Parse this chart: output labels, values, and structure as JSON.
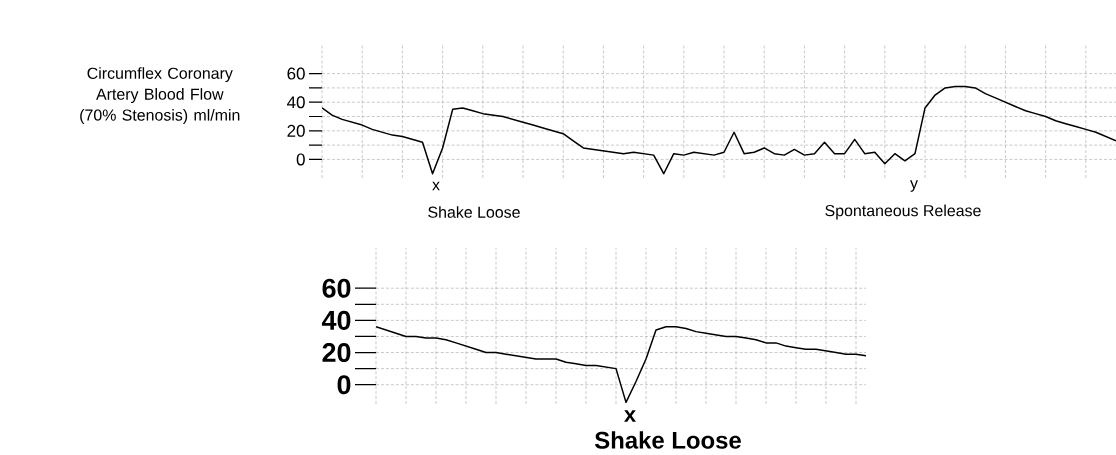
{
  "chart_data": [
    {
      "type": "line",
      "ylabel": "Circumflex Coronary Artery Blood Flow (70% Stenosis) ml/min",
      "categories": [
        null,
        null,
        null,
        null,
        null,
        null,
        null,
        null,
        null,
        null,
        null,
        null,
        null,
        null,
        null,
        null,
        null,
        null,
        null,
        null,
        null,
        null,
        null,
        null,
        null,
        null,
        null,
        null,
        null,
        null,
        null,
        null,
        null,
        null,
        null,
        null,
        null,
        null,
        null,
        null,
        null,
        null,
        null,
        null,
        null,
        null,
        null,
        null,
        null,
        null,
        null,
        null,
        null,
        null,
        null,
        null,
        null,
        null,
        null,
        null,
        null,
        null,
        null,
        null,
        null,
        null,
        null,
        null,
        null,
        null,
        null,
        null,
        null,
        null,
        null,
        null,
        null,
        null,
        null,
        null
      ],
      "series": [
        {
          "color": "#000000",
          "values": [
            36,
            31,
            28,
            26,
            24,
            21,
            19,
            17,
            16,
            14,
            12,
            -10,
            8,
            35,
            36,
            34,
            32,
            31,
            30,
            28,
            26,
            24,
            22,
            20,
            18,
            13,
            8,
            7,
            6,
            5,
            4,
            5,
            4,
            3,
            -10,
            4,
            3,
            5,
            4,
            3,
            5,
            19,
            4,
            5,
            8,
            4,
            3,
            7,
            3,
            4,
            12,
            4,
            4,
            14,
            4,
            5,
            -3,
            4,
            -1,
            4,
            36,
            45,
            50,
            51,
            51,
            50,
            46,
            43,
            40,
            37,
            34,
            32,
            30,
            27,
            25,
            23,
            21,
            19,
            16,
            13
          ]
        }
      ],
      "ylim": [
        -13,
        80
      ],
      "yticks": [
        0,
        {
          "value": 10,
          "label": null
        },
        20,
        {
          "value": 30,
          "label": null
        },
        40,
        {
          "value": 50,
          "label": null
        },
        60
      ],
      "grid": true,
      "annotations": [
        "x",
        "Shake Loose",
        "y",
        "Spontaneous Release"
      ]
    },
    {
      "type": "line",
      "categories": [
        null,
        null,
        null,
        null,
        null,
        null,
        null,
        null,
        null,
        null,
        null,
        null,
        null,
        null,
        null,
        null,
        null,
        null,
        null,
        null,
        null,
        null,
        null,
        null,
        null,
        null,
        null,
        null,
        null,
        null,
        null,
        null,
        null,
        null,
        null,
        null,
        null,
        null,
        null,
        null,
        null,
        null,
        null,
        null,
        null,
        null,
        null,
        null,
        null,
        null
      ],
      "series": [
        {
          "color": "#000000",
          "values": [
            36,
            34,
            32,
            30,
            30,
            29,
            29,
            28,
            26,
            24,
            22,
            20,
            20,
            19,
            18,
            17,
            16,
            16,
            16,
            14,
            13,
            12,
            12,
            11,
            10,
            -11,
            2,
            16,
            34,
            36,
            36,
            35,
            33,
            32,
            31,
            30,
            30,
            29,
            28,
            26,
            26,
            24,
            23,
            22,
            22,
            21,
            20,
            19,
            19,
            18
          ]
        }
      ],
      "ylim": [
        -12,
        85
      ],
      "yticks": [
        0,
        {
          "value": 10,
          "label": null
        },
        20,
        {
          "value": 30,
          "label": null
        },
        40,
        {
          "value": 50,
          "label": null
        },
        60
      ],
      "grid": true,
      "annotations": [
        "x",
        "Shake Loose"
      ]
    }
  ]
}
